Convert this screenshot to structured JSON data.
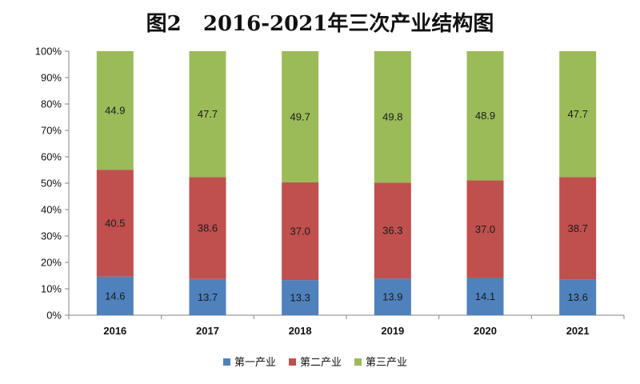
{
  "chart_data": {
    "type": "bar",
    "stacked": true,
    "title": "图2   2016-2021年三次产业结构图",
    "xlabel": "",
    "ylabel": "",
    "categories": [
      "2016",
      "2017",
      "2018",
      "2019",
      "2020",
      "2021"
    ],
    "series": [
      {
        "name": "第一产业",
        "values": [
          14.6,
          13.7,
          13.3,
          13.9,
          14.1,
          13.6
        ],
        "color": "#4f81bd"
      },
      {
        "name": "第二产业",
        "values": [
          40.5,
          38.6,
          37.0,
          36.3,
          37.0,
          38.7
        ],
        "color": "#c0504d"
      },
      {
        "name": "第三产业",
        "values": [
          44.9,
          47.7,
          49.7,
          49.8,
          48.9,
          47.7
        ],
        "color": "#9bbb59"
      }
    ],
    "ylim": [
      0,
      100
    ],
    "yticks": [
      "0%",
      "10%",
      "20%",
      "30%",
      "40%",
      "50%",
      "60%",
      "70%",
      "80%",
      "90%",
      "100%"
    ],
    "grid": false,
    "legend": "bottom"
  }
}
